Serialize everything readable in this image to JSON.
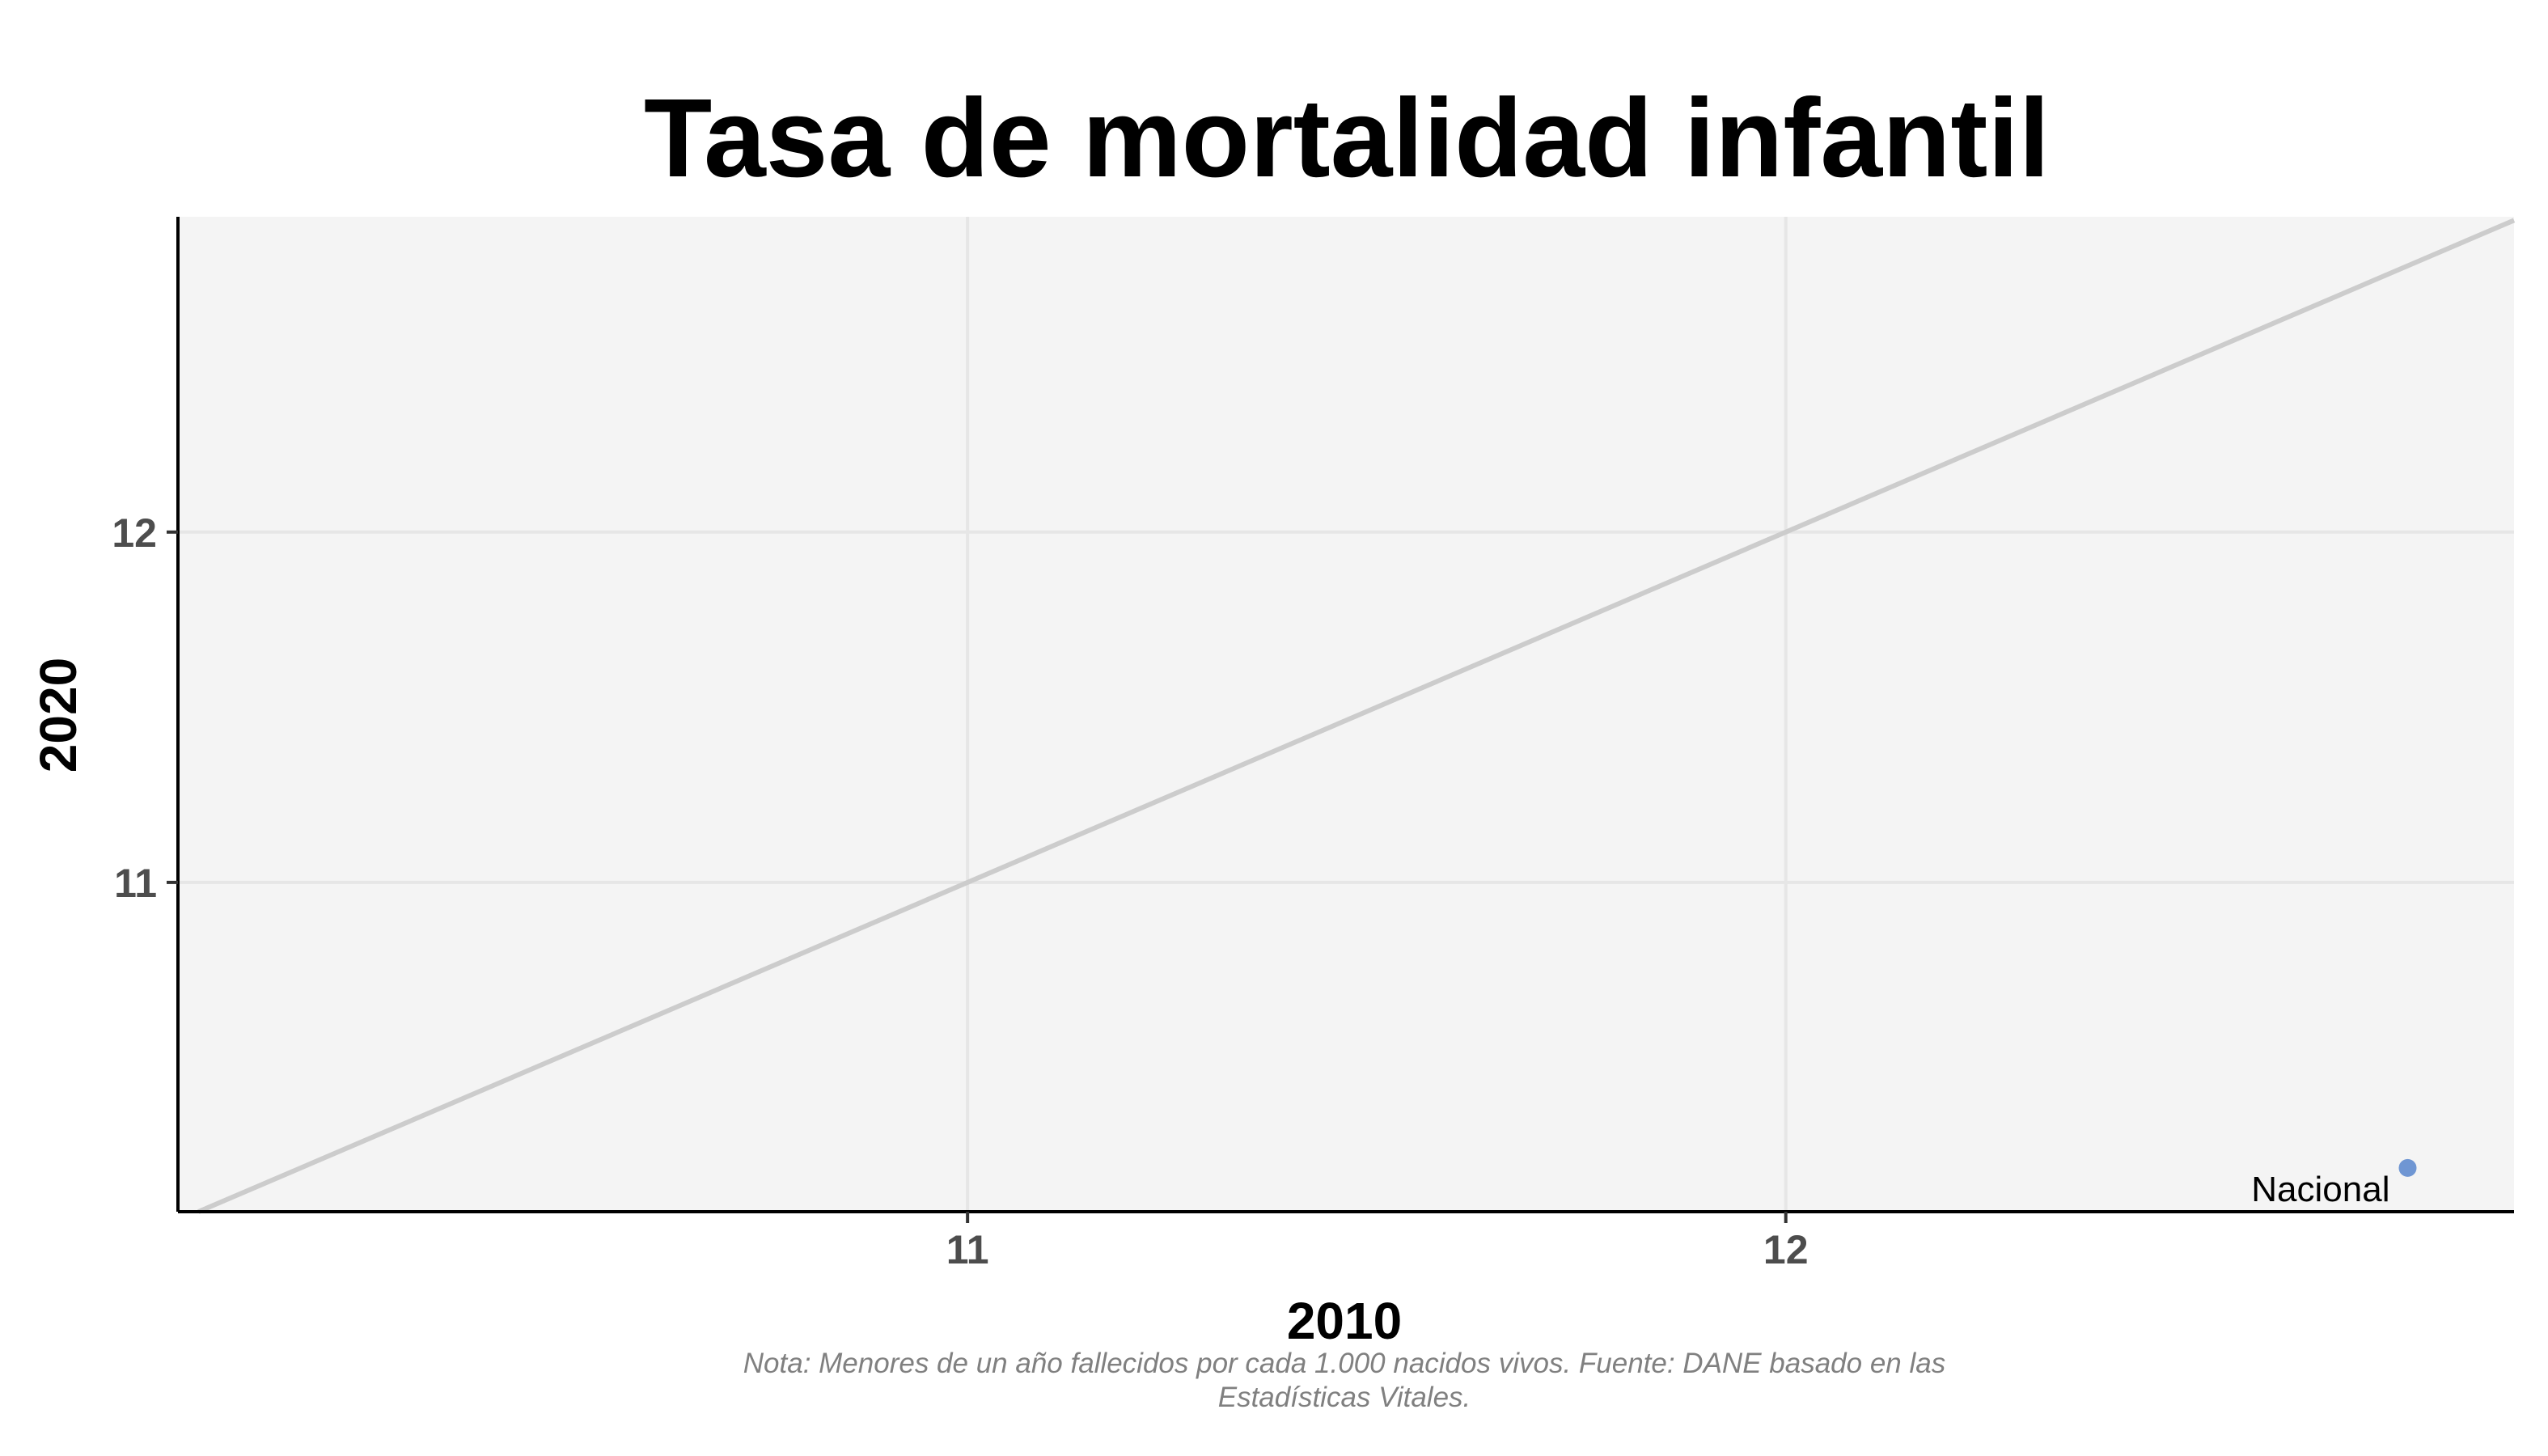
{
  "chart_data": {
    "type": "scatter",
    "title": "Tasa de mortalidad infantil",
    "xlabel": "2010",
    "ylabel": "2020",
    "xlim": [
      10.035,
      12.89
    ],
    "ylim": [
      10.06,
      12.9
    ],
    "x_ticks": [
      11,
      12
    ],
    "y_ticks": [
      11,
      12
    ],
    "grid": true,
    "reference_line": "y = x",
    "points": [
      {
        "label": "Nacional",
        "x": 12.76,
        "y": 10.185
      }
    ],
    "caption": [
      "Nota: Menores de un año fallecidos por cada 1.000 nacidos vivos. Fuente: DANE basado en las",
      "Estadísticas Vitales."
    ],
    "colors": {
      "panel": "#f4f4f4",
      "grid": "#e6e6e6",
      "reference_line": "#cccccc",
      "point": "#6f96d3"
    }
  }
}
